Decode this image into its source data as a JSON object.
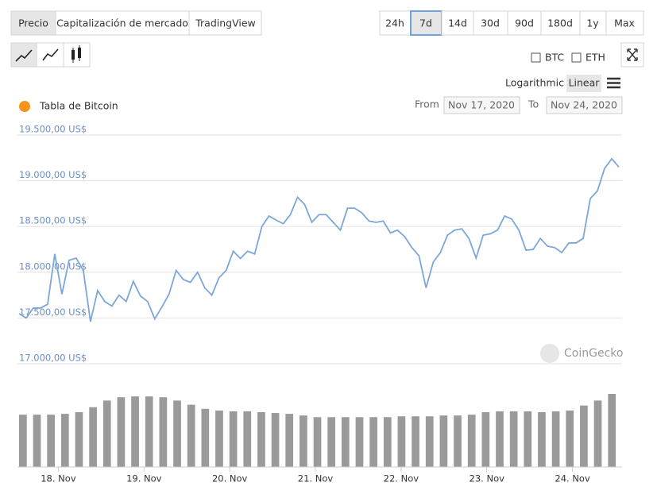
{
  "toolbar": {
    "tabs": [
      "Precio",
      "Capitalización de mercado",
      "TradingView"
    ],
    "ranges": [
      "24h",
      "7d",
      "14d",
      "30d",
      "90d",
      "180d",
      "1y",
      "Max"
    ],
    "currencies": [
      "BTC",
      "ETH"
    ],
    "scale_options": [
      "Logarithmic",
      "Linear"
    ]
  },
  "chart_data": {
    "type": "line",
    "title": "Tabla de Bitcoin",
    "from_label": "From",
    "from": "Nov 17, 2020",
    "to_label": "To",
    "to": "Nov 24, 2020",
    "watermark": "CoinGecko",
    "color": "#7ca7d8",
    "values": [
      17547,
      17500,
      17608,
      17608,
      17650,
      18200,
      17760,
      18130,
      18155,
      18020,
      17460,
      17800,
      17680,
      17630,
      17750,
      17680,
      17900,
      17740,
      17680,
      17490,
      17620,
      17760,
      18020,
      17920,
      17890,
      18000,
      17830,
      17750,
      17940,
      18020,
      18230,
      18150,
      18230,
      18200,
      18500,
      18615,
      18570,
      18530,
      18630,
      18820,
      18740,
      18545,
      18630,
      18630,
      18545,
      18460,
      18700,
      18700,
      18650,
      18560,
      18545,
      18560,
      18430,
      18460,
      18390,
      18270,
      18180,
      17830,
      18110,
      18215,
      18405,
      18460,
      18475,
      18370,
      18155,
      18405,
      18420,
      18460,
      18615,
      18580,
      18460,
      18240,
      18250,
      18370,
      18285,
      18270,
      18215,
      18320,
      18320,
      18370,
      18805,
      18890,
      19135,
      19240,
      19150
    ],
    "xlim": [
      0,
      84
    ],
    "xticks": [
      {
        "value": 5.5,
        "label": "18. Nov"
      },
      {
        "value": 17.5,
        "label": "19. Nov"
      },
      {
        "value": 29.5,
        "label": "20. Nov"
      },
      {
        "value": 41.5,
        "label": "21. Nov"
      },
      {
        "value": 53.5,
        "label": "22. Nov"
      },
      {
        "value": 65.5,
        "label": "23. Nov"
      },
      {
        "value": 77.5,
        "label": "24. Nov"
      }
    ],
    "ylim": [
      17000,
      19500
    ],
    "yticks": [
      {
        "value": 17000,
        "label": "17.000,00 US$"
      },
      {
        "value": 17500,
        "label": "17.500,00 US$"
      },
      {
        "value": 18000,
        "label": "18.000,00 US$"
      },
      {
        "value": 18500,
        "label": "18.500,00 US$"
      },
      {
        "value": 19000,
        "label": "19.000,00 US$"
      },
      {
        "value": 19500,
        "label": "19.500,00 US$"
      }
    ],
    "grid": true,
    "volume_color": "#9a9a9a",
    "volume_values": [
      63,
      63,
      63,
      64,
      66,
      72,
      80,
      84,
      85,
      85,
      84,
      80,
      75,
      70,
      68,
      67,
      67,
      66,
      65,
      64,
      62,
      60,
      60,
      60,
      60,
      60,
      60,
      61,
      61,
      61,
      62,
      62,
      63,
      66,
      67,
      67,
      67,
      66,
      67,
      68,
      74,
      80,
      88
    ]
  }
}
